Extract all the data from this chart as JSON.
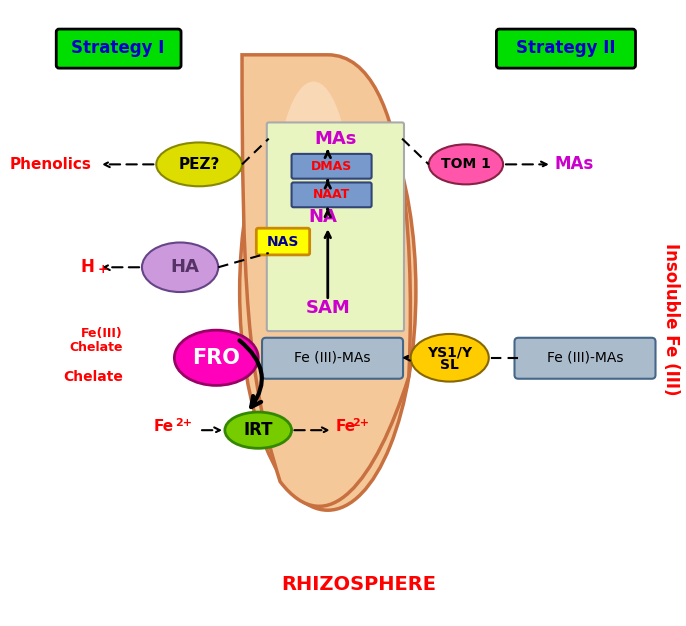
{
  "fig_width": 6.86,
  "fig_height": 6.26,
  "bg_color": "#ffffff",
  "title": "RHIZOSPHERE",
  "title_color": "#ff0000",
  "title_fontsize": 14,
  "right_label": "Insoluble Fe (III)",
  "right_label_color": "#ff0000",
  "strategy1_label": "Strategy I",
  "strategy2_label": "Strategy II",
  "strategy_bg": "#00dd00",
  "strategy_text_color": "#0000cc",
  "root_color": "#f5c89a",
  "root_border": "#c87040",
  "root_inner_color": "#fde8d0",
  "nas_box_color": "#ffff00",
  "nas_box_border": "#cc8800",
  "pathway_box_color": "#e8f5c0",
  "pathway_box_border": "#aaaaaa",
  "dmas_box_color": "#7799cc",
  "dmas_box_border": "#334477",
  "naat_box_color": "#7799cc",
  "naat_box_border": "#334477",
  "fe3mas_box_color": "#aabbcc",
  "fe3mas_box_border": "#446688",
  "fro_color": "#ff00bb",
  "fro_edge": "#990066",
  "irt_color": "#77cc00",
  "irt_border": "#338800",
  "ha_color": "#cc99dd",
  "ha_border": "#664488",
  "pez_color": "#dddd00",
  "pez_border": "#888800",
  "tom1_color": "#ff55aa",
  "tom1_border": "#882244",
  "ys1_color": "#ffcc00",
  "ys1_border": "#886600",
  "mas_text_color": "#cc00cc",
  "na_text_color": "#cc00cc",
  "sam_text_color": "#cc00cc",
  "label_red": "#ff0000"
}
